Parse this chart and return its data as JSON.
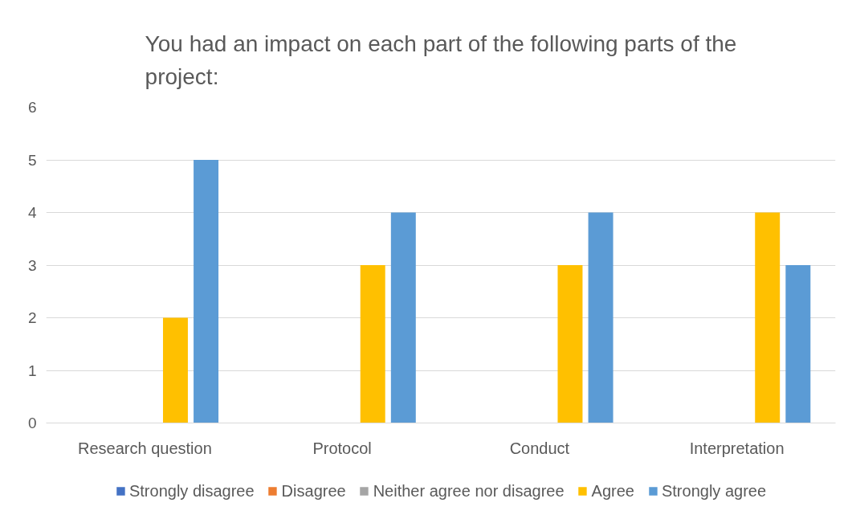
{
  "chart_data": {
    "type": "bar",
    "title": "You had an impact on each part of the following parts of the project:",
    "categories": [
      "Research question",
      "Protocol",
      "Conduct",
      "Interpretation"
    ],
    "series": [
      {
        "name": "Strongly disagree",
        "color": "#4472c4",
        "values": [
          0,
          0,
          0,
          0
        ]
      },
      {
        "name": "Disagree",
        "color": "#ed7d31",
        "values": [
          0,
          0,
          0,
          0
        ]
      },
      {
        "name": "Neither agree nor disagree",
        "color": "#a5a5a5",
        "values": [
          0,
          0,
          0,
          0
        ]
      },
      {
        "name": "Agree",
        "color": "#ffc000",
        "values": [
          2,
          3,
          3,
          4
        ]
      },
      {
        "name": "Strongly agree",
        "color": "#5b9bd5",
        "values": [
          5,
          4,
          4,
          3
        ]
      }
    ],
    "ylim": [
      0,
      6
    ],
    "yticks": [
      0,
      1,
      2,
      3,
      4,
      5,
      6
    ],
    "grid": "y",
    "legend": "bottom"
  }
}
